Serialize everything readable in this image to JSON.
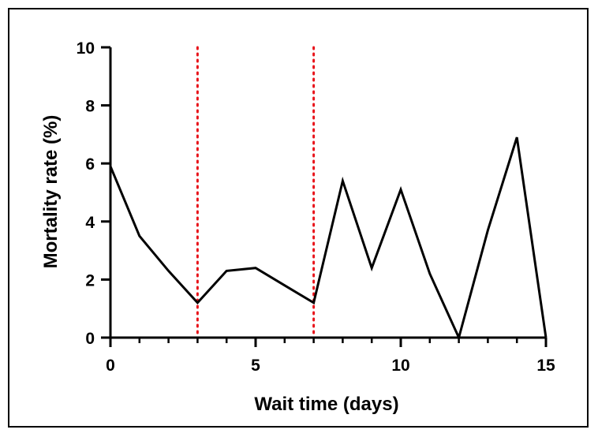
{
  "chart_data": {
    "type": "line",
    "title": "",
    "xlabel": "Wait time (days)",
    "ylabel": "Mortality rate (%)",
    "xlim": [
      0,
      15
    ],
    "ylim": [
      0,
      10
    ],
    "x_major_ticks": [
      0,
      5,
      10,
      15
    ],
    "x_minor_ticks": [
      1,
      2,
      3,
      4,
      6,
      7,
      8,
      9,
      11,
      12,
      13,
      14
    ],
    "y_ticks": [
      0,
      2,
      4,
      6,
      8,
      10
    ],
    "grid": false,
    "series": [
      {
        "x": [
          0,
          1,
          2,
          3,
          4,
          5,
          6,
          7,
          8,
          9,
          10,
          11,
          12,
          13,
          14,
          15
        ],
        "values": [
          5.9,
          3.5,
          2.3,
          1.2,
          2.3,
          2.4,
          1.8,
          1.2,
          5.4,
          2.4,
          5.1,
          2.2,
          0.0,
          3.7,
          6.9,
          0.0
        ],
        "color": "#000000"
      }
    ],
    "reference_lines": [
      {
        "x": 3,
        "style": "dotted",
        "color": "#e8141b"
      },
      {
        "x": 7,
        "style": "dotted",
        "color": "#e8141b"
      }
    ]
  }
}
